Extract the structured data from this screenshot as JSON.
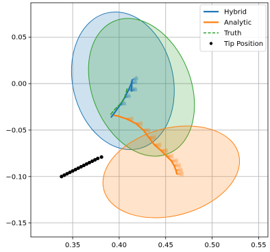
{
  "chart_data": {
    "type": "scatter",
    "title": "",
    "xlabel": "",
    "ylabel": "",
    "xlim": [
      0.305,
      0.56
    ],
    "ylim": [
      -0.165,
      0.087
    ],
    "grid": true,
    "legend_position": "top-right",
    "x_ticks": [
      {
        "value": 0.35,
        "label": "0.35"
      },
      {
        "value": 0.4,
        "label": "0.40"
      },
      {
        "value": 0.45,
        "label": "0.45"
      },
      {
        "value": 0.5,
        "label": "0.50"
      },
      {
        "value": 0.55,
        "label": "0.55"
      }
    ],
    "y_ticks": [
      {
        "value": 0.05,
        "label": "0.05"
      },
      {
        "value": 0.0,
        "label": "0.00"
      },
      {
        "value": -0.05,
        "label": "−0.05"
      },
      {
        "value": -0.1,
        "label": "−0.10"
      },
      {
        "value": -0.15,
        "label": "−0.15"
      }
    ],
    "legend": [
      {
        "label": "Hybrid",
        "color": "#1f77b4",
        "style": "solid"
      },
      {
        "label": "Analytic",
        "color": "#ff7f0e",
        "style": "solid"
      },
      {
        "label": "Truth",
        "color": "#2ca02c",
        "style": "dashed"
      },
      {
        "label": "Tip Position",
        "color": "#000000",
        "style": "marker"
      }
    ],
    "ellipses": [
      {
        "series": "Hybrid",
        "color": "#1f77b4",
        "cx": 0.404,
        "cy": 0.003,
        "rx": 0.054,
        "ry": 0.075,
        "angle_deg": -13
      },
      {
        "series": "Truth",
        "color": "#2ca02c",
        "cx": 0.424,
        "cy": -0.004,
        "rx": 0.053,
        "ry": 0.077,
        "angle_deg": -22
      },
      {
        "series": "Analytic",
        "color": "#ff7f0e",
        "cx": 0.456,
        "cy": -0.095,
        "rx": 0.075,
        "ry": 0.047,
        "angle_deg": -15
      }
    ],
    "series": [
      {
        "name": "Hybrid",
        "color": "#1f77b4",
        "x": [
          0.3915,
          0.396,
          0.401,
          0.406,
          0.41,
          0.413,
          0.414,
          0.413
        ],
        "y": [
          -0.036,
          -0.03,
          -0.023,
          -0.015,
          -0.007,
          0.0,
          0.004,
          -0.008
        ]
      },
      {
        "name": "Analytic",
        "color": "#ff7f0e",
        "x": [
          0.3935,
          0.399,
          0.408,
          0.418,
          0.426,
          0.432,
          0.438,
          0.445,
          0.451,
          0.456,
          0.459,
          0.461,
          0.462
        ],
        "y": [
          -0.034,
          -0.035,
          -0.038,
          -0.043,
          -0.05,
          -0.058,
          -0.066,
          -0.072,
          -0.078,
          -0.083,
          -0.088,
          -0.093,
          -0.097
        ]
      },
      {
        "name": "Truth",
        "color": "#2ca02c",
        "x": [
          0.391,
          0.395,
          0.399,
          0.402,
          0.405,
          0.407,
          0.409
        ],
        "y": [
          -0.033,
          -0.028,
          -0.024,
          -0.021,
          -0.017,
          -0.011,
          -0.004
        ]
      },
      {
        "name": "Tip Position",
        "color": "#000000",
        "x": [
          0.338,
          0.341,
          0.344,
          0.347,
          0.35,
          0.353,
          0.356,
          0.359,
          0.362,
          0.365,
          0.368,
          0.371,
          0.374,
          0.377,
          0.381
        ],
        "y": [
          -0.1,
          -0.0985,
          -0.097,
          -0.0955,
          -0.094,
          -0.0925,
          -0.091,
          -0.0895,
          -0.088,
          -0.0865,
          -0.085,
          -0.0835,
          -0.082,
          -0.0805,
          -0.079
        ]
      }
    ]
  }
}
